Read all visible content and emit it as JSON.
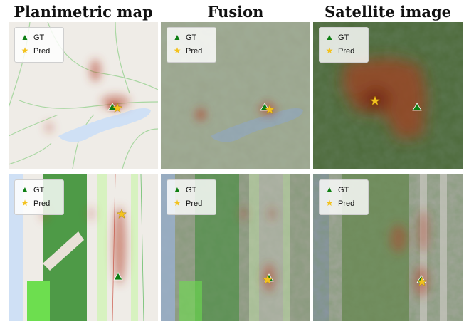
{
  "columns": [
    "Planimetric map",
    "Fusion",
    "Satellite image"
  ],
  "legend": {
    "gt_label": "GT",
    "pred_label": "Pred",
    "gt_icon": "green-triangle-icon",
    "pred_icon": "yellow-star-icon",
    "gt_color": "#0e7f13",
    "pred_color": "#f3c21e"
  },
  "colors": {
    "map_background": "#efece7",
    "water": "#cfe0f5",
    "park": "#5bb35a",
    "heatmap": "#b4412e",
    "forest": "#3f5e33"
  }
}
